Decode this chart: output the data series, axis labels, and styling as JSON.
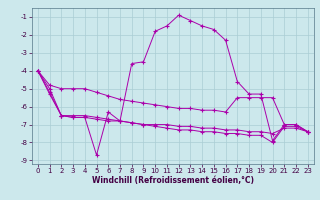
{
  "title": "",
  "xlabel": "Windchill (Refroidissement éolien,°C)",
  "ylabel": "",
  "background_color": "#cce8ec",
  "grid_color": "#aacdd4",
  "line_color": "#aa00aa",
  "xlim": [
    -0.5,
    23.5
  ],
  "ylim": [
    -9.2,
    -0.5
  ],
  "xticks": [
    0,
    1,
    2,
    3,
    4,
    5,
    6,
    7,
    8,
    9,
    10,
    11,
    12,
    13,
    14,
    15,
    16,
    17,
    18,
    19,
    20,
    21,
    22,
    23
  ],
  "yticks": [
    -9,
    -8,
    -7,
    -6,
    -5,
    -4,
    -3,
    -2,
    -1
  ],
  "line1_x": [
    0,
    1,
    2,
    3,
    4,
    5,
    6,
    7,
    8,
    9,
    10,
    11,
    12,
    13,
    14,
    15,
    16,
    17,
    18,
    19,
    20,
    21,
    22,
    23
  ],
  "line1_y": [
    -4.0,
    -5.3,
    -6.5,
    -6.6,
    -6.6,
    -8.7,
    -6.3,
    -6.8,
    -3.6,
    -3.5,
    -1.8,
    -1.5,
    -0.9,
    -1.2,
    -1.5,
    -1.7,
    -2.3,
    -4.6,
    -5.3,
    -5.3,
    -7.9,
    -7.0,
    -7.0,
    -7.4
  ],
  "line2_x": [
    0,
    1,
    2,
    3,
    4,
    5,
    6,
    7,
    8,
    9,
    10,
    11,
    12,
    13,
    14,
    15,
    16,
    17,
    18,
    19,
    20,
    21,
    22,
    23
  ],
  "line2_y": [
    -4.0,
    -4.8,
    -5.0,
    -5.0,
    -5.0,
    -5.2,
    -5.4,
    -5.6,
    -5.7,
    -5.8,
    -5.9,
    -6.0,
    -6.1,
    -6.1,
    -6.2,
    -6.2,
    -6.3,
    -5.5,
    -5.5,
    -5.5,
    -5.5,
    -7.0,
    -7.0,
    -7.4
  ],
  "line3_x": [
    0,
    1,
    2,
    3,
    4,
    5,
    6,
    7,
    8,
    9,
    10,
    11,
    12,
    13,
    14,
    15,
    16,
    17,
    18,
    19,
    20,
    21,
    22,
    23
  ],
  "line3_y": [
    -4.0,
    -5.0,
    -6.5,
    -6.5,
    -6.5,
    -6.6,
    -6.7,
    -6.8,
    -6.9,
    -7.0,
    -7.0,
    -7.0,
    -7.1,
    -7.1,
    -7.2,
    -7.2,
    -7.3,
    -7.3,
    -7.4,
    -7.4,
    -7.5,
    -7.2,
    -7.2,
    -7.4
  ],
  "line4_x": [
    0,
    1,
    2,
    3,
    4,
    5,
    6,
    7,
    8,
    9,
    10,
    11,
    12,
    13,
    14,
    15,
    16,
    17,
    18,
    19,
    20,
    21,
    22,
    23
  ],
  "line4_y": [
    -4.0,
    -5.2,
    -6.5,
    -6.6,
    -6.6,
    -6.7,
    -6.8,
    -6.8,
    -6.9,
    -7.0,
    -7.1,
    -7.2,
    -7.3,
    -7.3,
    -7.4,
    -7.4,
    -7.5,
    -7.5,
    -7.6,
    -7.6,
    -8.0,
    -7.1,
    -7.1,
    -7.4
  ],
  "tick_fontsize": 5,
  "xlabel_fontsize": 5.5
}
